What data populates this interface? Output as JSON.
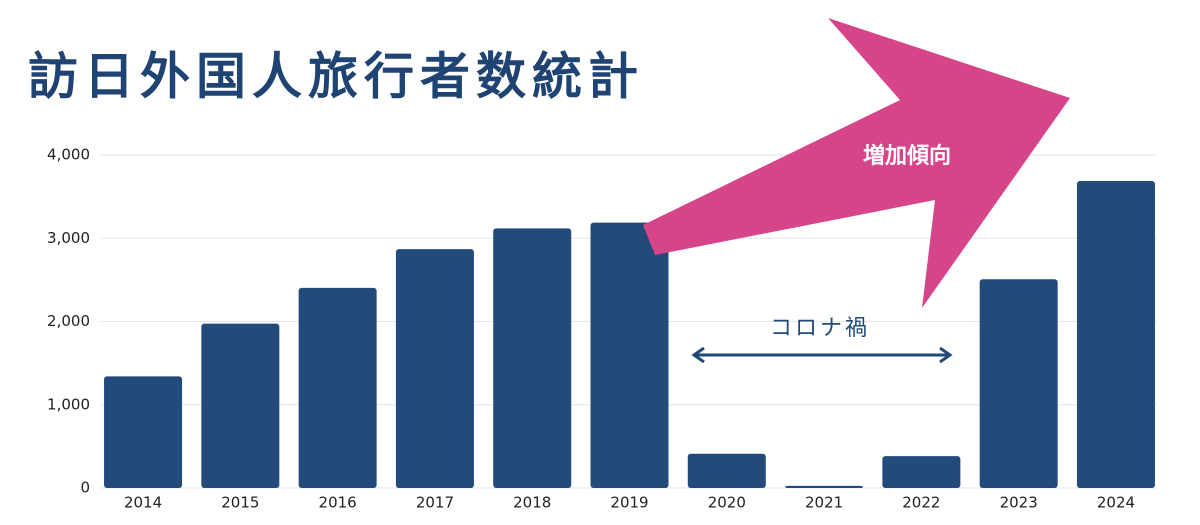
{
  "chart_data": {
    "type": "bar",
    "title": "訪日外国人旅行者数統計",
    "categories": [
      "2014",
      "2015",
      "2016",
      "2017",
      "2018",
      "2019",
      "2020",
      "2021",
      "2022",
      "2023",
      "2024"
    ],
    "values": [
      1341,
      1974,
      2404,
      2869,
      3119,
      3188,
      412,
      25,
      383,
      2507,
      3687
    ],
    "color": "#224a7a",
    "ylim": [
      0,
      4000
    ],
    "yticks": [
      0,
      {
        "value": 1000,
        "label": "1,000"
      },
      {
        "value": 2000,
        "label": "2,000"
      },
      {
        "value": 3000,
        "label": "3,000"
      },
      {
        "value": 4000,
        "label": "4,000"
      }
    ],
    "grid": true,
    "annotations": {
      "trend": "増加傾向",
      "covid": "コロナ禍"
    }
  }
}
